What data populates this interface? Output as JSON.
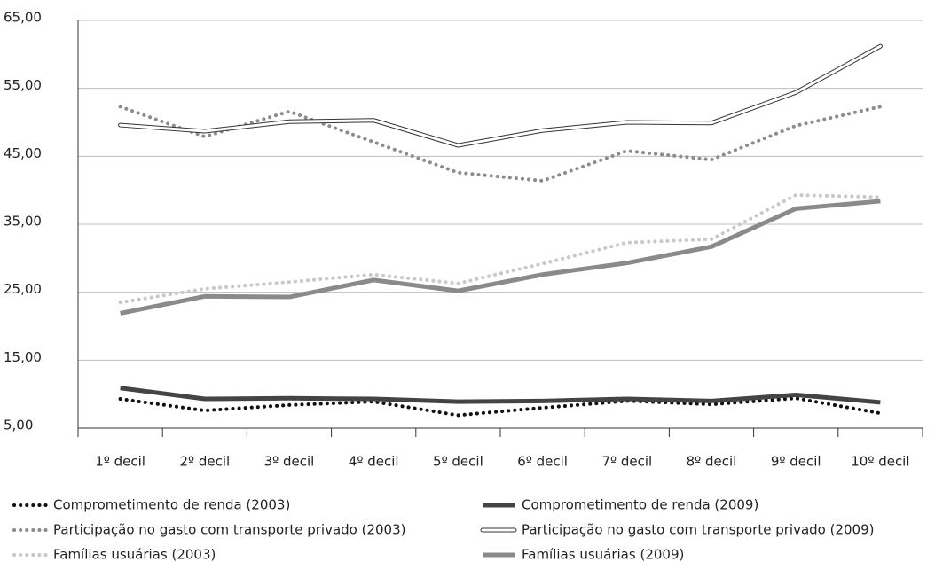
{
  "chart_data": {
    "type": "line",
    "categories": [
      "1º decil",
      "2º decil",
      "3º decil",
      "4º decil",
      "5º decil",
      "6º decil",
      "7º decil",
      "8º decil",
      "9º decil",
      "10º decil"
    ],
    "ylim": [
      5,
      65
    ],
    "yticks": [
      {
        "value": 5,
        "label": "5,00"
      },
      {
        "value": 15,
        "label": "15,00"
      },
      {
        "value": 25,
        "label": "25,00"
      },
      {
        "value": 35,
        "label": "35,00"
      },
      {
        "value": 45,
        "label": "45,00"
      },
      {
        "value": 55,
        "label": "55,00"
      },
      {
        "value": 65,
        "label": "65,00"
      }
    ],
    "grid": true,
    "series": [
      {
        "name": "Comprometimento de renda (2003)",
        "color": "#111111",
        "style": "dotted",
        "values": [
          9.3,
          7.6,
          8.4,
          8.9,
          6.9,
          8.0,
          9.0,
          8.5,
          9.4,
          7.2
        ]
      },
      {
        "name": "Comprometimento de renda (2009)",
        "color": "#444444",
        "style": "solid",
        "values": [
          10.9,
          9.3,
          9.4,
          9.3,
          8.9,
          9.0,
          9.3,
          9.0,
          9.9,
          8.8
        ]
      },
      {
        "name": "Participação no gasto com transporte privado (2003)",
        "color": "#8c8c8c",
        "style": "dotted",
        "values": [
          52.3,
          47.9,
          51.6,
          47.1,
          42.6,
          41.4,
          45.8,
          44.5,
          49.5,
          52.3
        ]
      },
      {
        "name": "Participação no gasto com transporte privado (2009)",
        "color": "#333333",
        "style": "outline",
        "values": [
          49.6,
          48.7,
          50.1,
          50.3,
          46.6,
          48.8,
          50.0,
          49.9,
          54.4,
          61.2
        ]
      },
      {
        "name": "Famílias usuárias (2003)",
        "color": "#c8c8c8",
        "style": "dotted",
        "values": [
          23.5,
          25.5,
          26.5,
          27.6,
          26.3,
          29.2,
          32.3,
          32.8,
          39.3,
          39.0
        ]
      },
      {
        "name": "Famílias usuárias (2009)",
        "color": "#8a8a8a",
        "style": "solid",
        "values": [
          21.9,
          24.4,
          24.3,
          26.8,
          25.2,
          27.6,
          29.3,
          31.7,
          37.3,
          38.4
        ]
      }
    ]
  }
}
